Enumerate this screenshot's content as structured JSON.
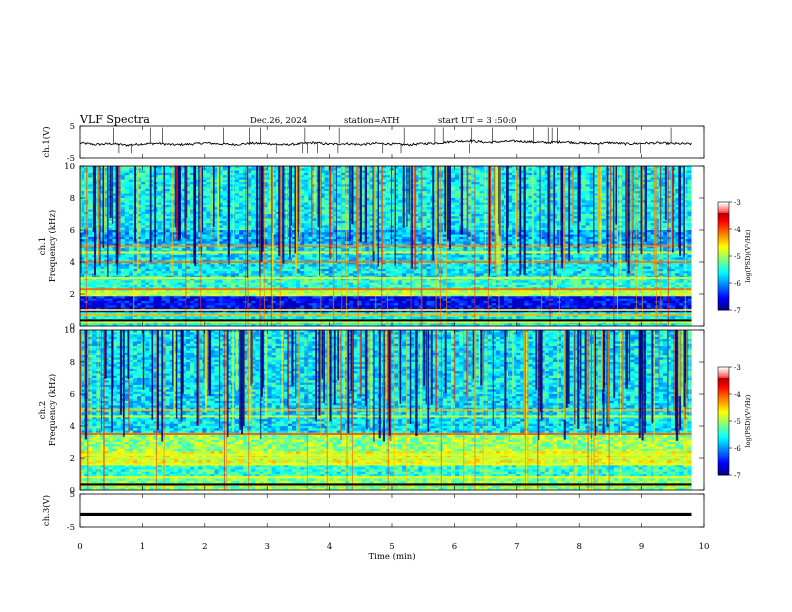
{
  "header": {
    "title": "VLF Spectra",
    "date": "Dec.26, 2024",
    "station": "station=ATH",
    "start": "start UT =  3 :50:0"
  },
  "chart_data": [
    {
      "type": "line",
      "panel": "ch1-waveform",
      "ylabel": "ch.1(V)",
      "ylim": [
        -5,
        5
      ],
      "yticks": [
        "5",
        "-5"
      ],
      "x": [
        0,
        0.25,
        0.5,
        0.75,
        1,
        1.25,
        1.5,
        1.75,
        2,
        2.25,
        2.5,
        2.75,
        3,
        3.25,
        3.5,
        3.75,
        4,
        4.25,
        4.5,
        4.75,
        5,
        5.25,
        5.5,
        5.75,
        6,
        6.25,
        6.5,
        6.75,
        7,
        7.25,
        7.5,
        7.75,
        8,
        8.25,
        8.5,
        8.75,
        9,
        9.25,
        9.5,
        9.8
      ],
      "y": [
        -0.3,
        -0.8,
        -0.5,
        -1.0,
        -0.6,
        -0.4,
        -0.9,
        -0.7,
        -0.3,
        -0.6,
        -0.8,
        -0.4,
        -0.5,
        -0.9,
        -0.6,
        -0.2,
        -0.7,
        -0.5,
        -0.8,
        -0.4,
        -0.6,
        -0.9,
        -0.5,
        -0.3,
        0.2,
        0.4,
        -0.1,
        0.1,
        0.3,
        0.0,
        -0.2,
        0.1,
        -0.3,
        -0.5,
        -0.2,
        -0.6,
        -0.4,
        -0.3,
        -0.5,
        -0.6
      ]
    },
    {
      "type": "heatmap",
      "panel": "ch1-spectrogram",
      "ylabel": "ch.1\nFrequency (kHz)",
      "ylim": [
        0,
        10
      ],
      "yticks": [
        "0",
        "2",
        "4",
        "6",
        "8",
        "10"
      ],
      "colorbar": {
        "label": "log(PSD)(V²/Hz)",
        "range": [
          -7,
          -3
        ],
        "ticks": [
          "-3",
          "-4",
          "-5",
          "-6",
          "-7"
        ]
      },
      "bands_khz": [
        0.25,
        0.7,
        1.0,
        2.0,
        2.3,
        3.0,
        4.0,
        4.6,
        5.0
      ],
      "dominant_level": -5.5
    },
    {
      "type": "heatmap",
      "panel": "ch2-spectrogram",
      "ylabel": "ch.2\nFrequency (kHz)",
      "ylim": [
        0,
        10
      ],
      "yticks": [
        "0",
        "2",
        "4",
        "6",
        "8",
        "10"
      ],
      "colorbar": {
        "label": "log(PSD)(V²/Hz)",
        "range": [
          -7,
          -3
        ],
        "ticks": [
          "-3",
          "-4",
          "-5",
          "-6",
          "-7"
        ]
      },
      "bands_khz": [
        0.3,
        0.8,
        1.6,
        2.0,
        2.2,
        3.5,
        4.6,
        5.0
      ],
      "dominant_level": -5.0
    },
    {
      "type": "line",
      "panel": "ch3-waveform",
      "ylabel": "ch.3(V)",
      "ylim": [
        -5,
        5
      ],
      "yticks": [
        "5",
        "-5"
      ],
      "x": [
        0,
        9.8
      ],
      "y": [
        -1.2,
        -1.2
      ]
    }
  ],
  "xaxis": {
    "label": "Time (min)",
    "ticks": [
      "0",
      "1",
      "2",
      "3",
      "4",
      "5",
      "6",
      "7",
      "8",
      "9",
      "10"
    ],
    "range": [
      0,
      10
    ]
  }
}
